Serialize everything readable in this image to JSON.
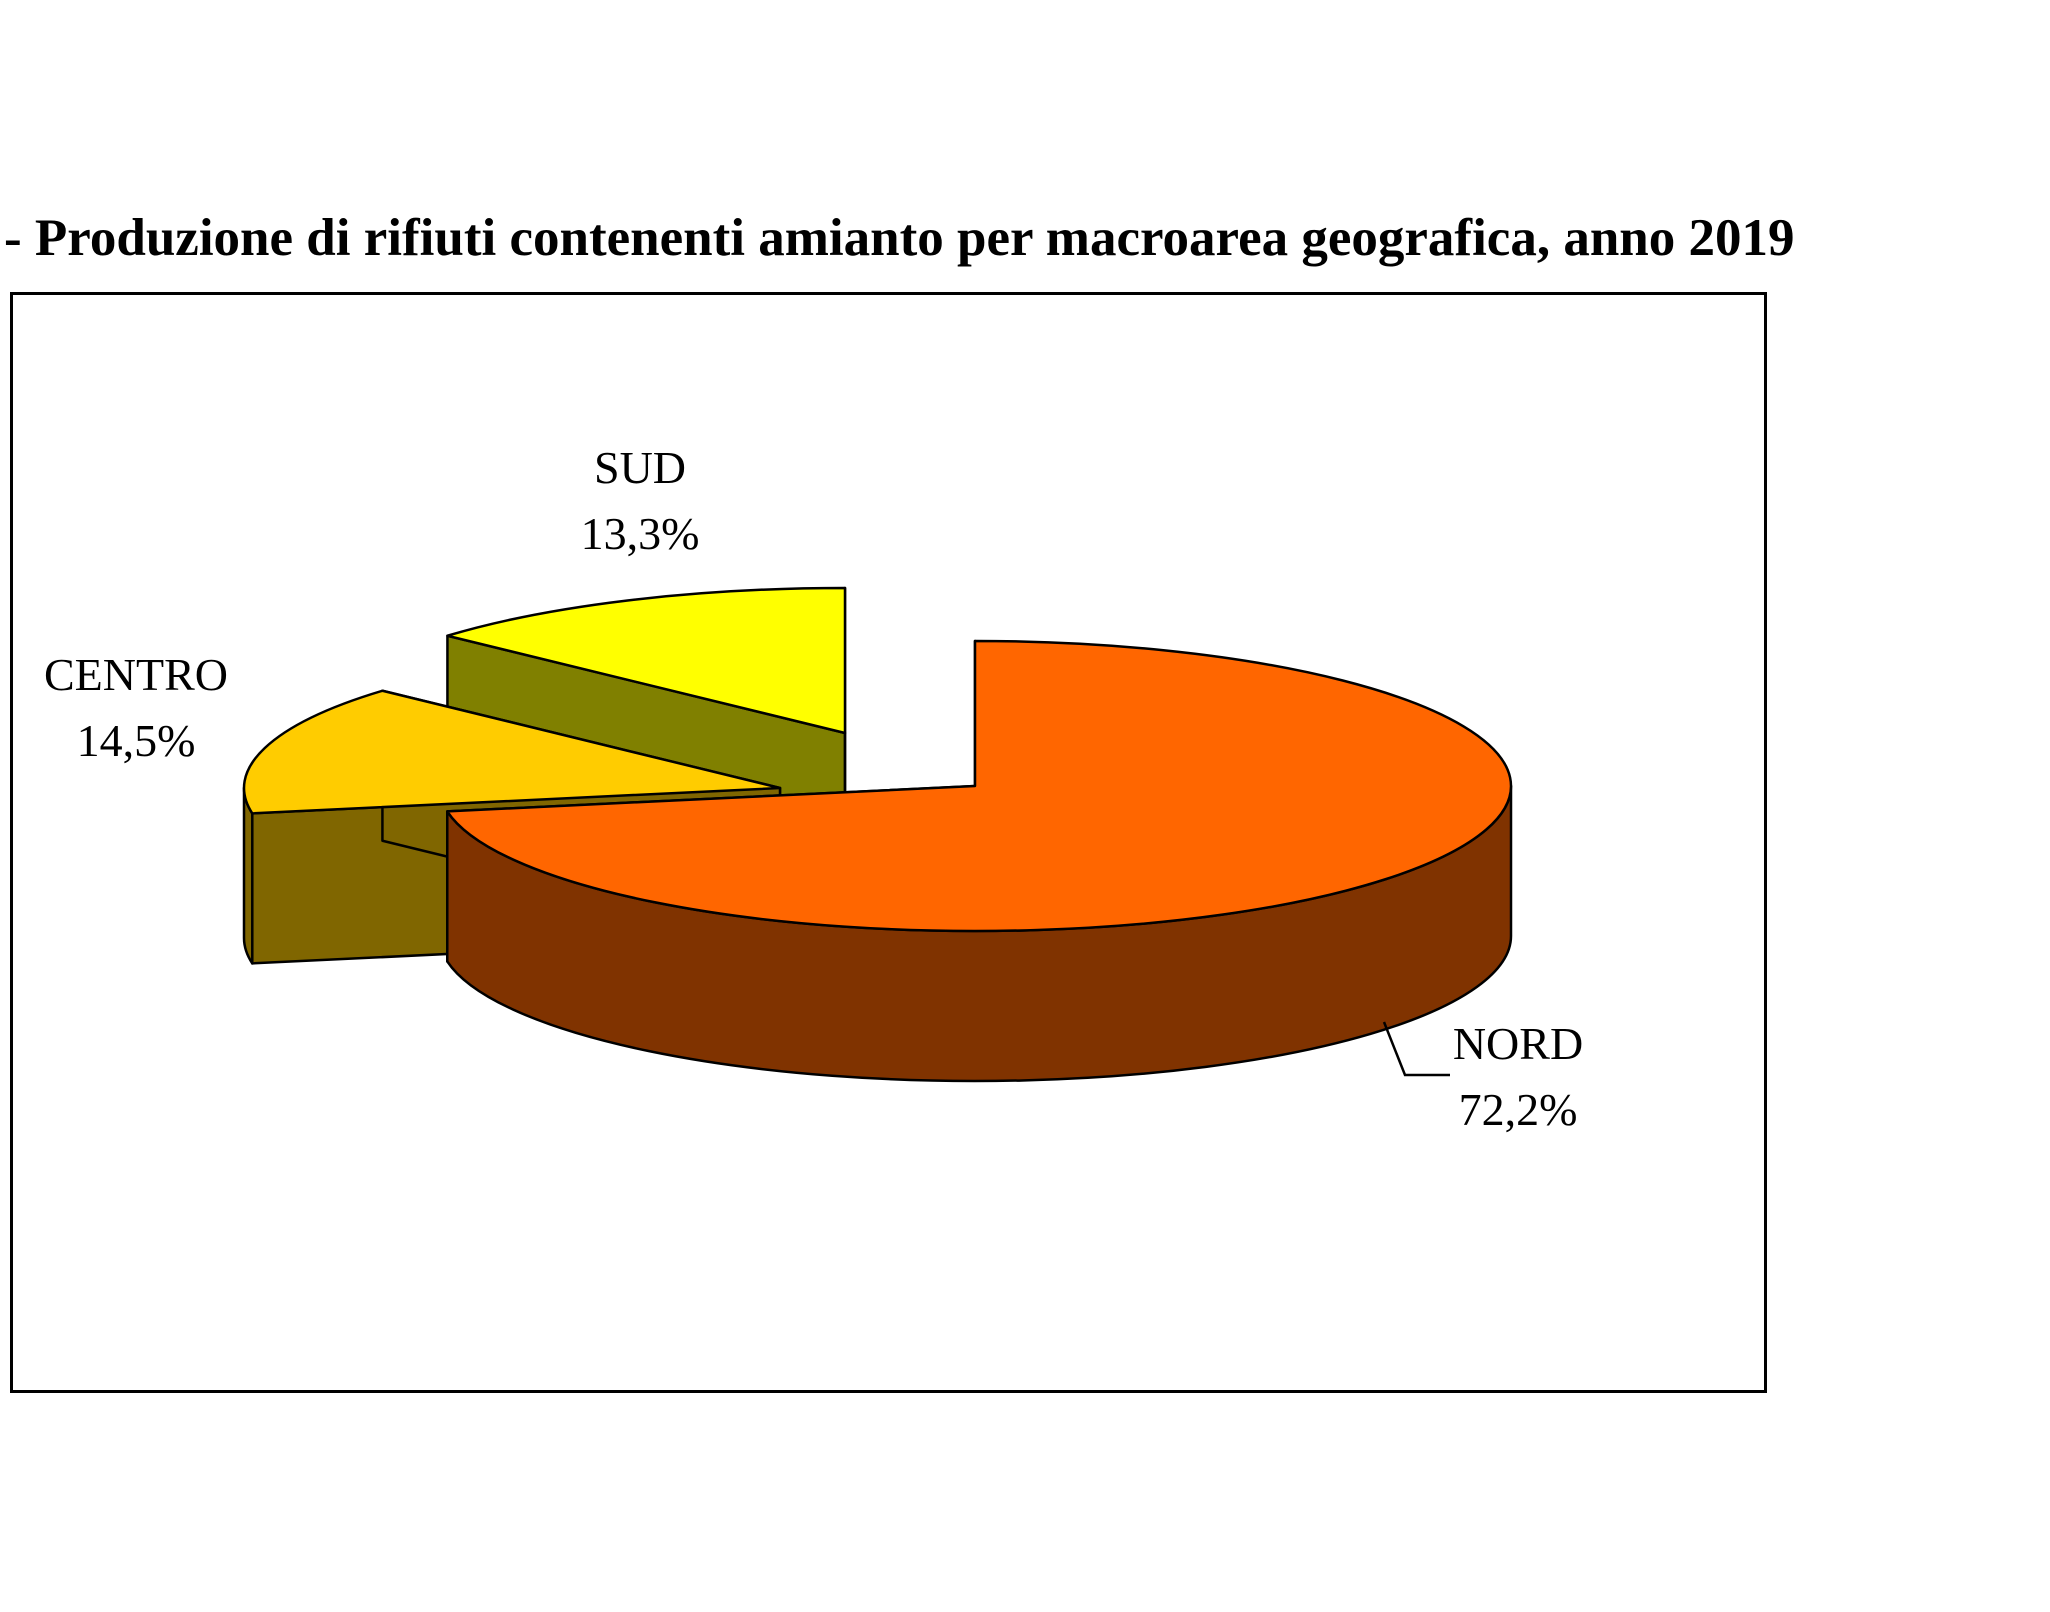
{
  "title": "- Produzione di rifiuti contenenti amianto per macroarea geografica, anno 2019",
  "chart_data": {
    "type": "pie",
    "style": "3d-exploded",
    "legend": "none",
    "slices": [
      {
        "name": "NORD",
        "value": 72.2,
        "value_label": "72,2%",
        "top_color": "#FF6600",
        "side_color": "#803300"
      },
      {
        "name": "CENTRO",
        "value": 14.5,
        "value_label": "14,5%",
        "top_color": "#FFCC00",
        "side_color": "#806600"
      },
      {
        "name": "SUD",
        "value": 13.3,
        "value_label": "13,3%",
        "top_color": "#FFFF00",
        "side_color": "#808000"
      }
    ]
  }
}
